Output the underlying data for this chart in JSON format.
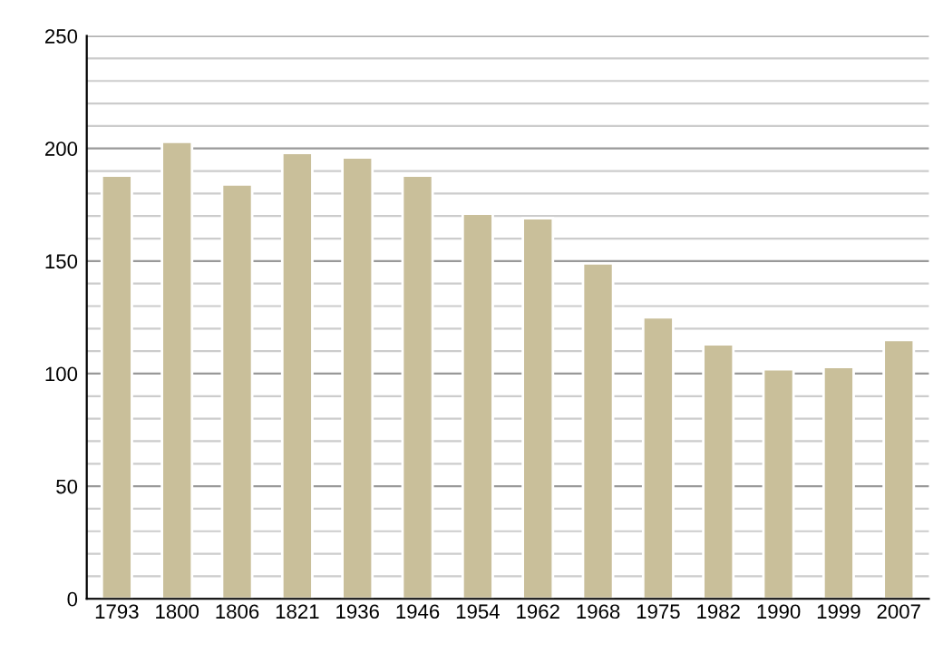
{
  "chart_data": {
    "type": "bar",
    "categories": [
      "1793",
      "1800",
      "1806",
      "1821",
      "1936",
      "1946",
      "1954",
      "1962",
      "1968",
      "1975",
      "1982",
      "1990",
      "1999",
      "2007"
    ],
    "values": [
      188,
      203,
      184,
      198,
      196,
      188,
      171,
      169,
      149,
      125,
      113,
      102,
      103,
      115
    ],
    "color": "#c9bf9a",
    "ylim": [
      0,
      250
    ],
    "yticks": [
      0,
      {
        "value": 10,
        "label": null
      },
      {
        "value": 20,
        "label": null
      },
      {
        "value": 30,
        "label": null
      },
      {
        "value": 40,
        "label": null
      },
      50,
      {
        "value": 60,
        "label": null
      },
      {
        "value": 70,
        "label": null
      },
      {
        "value": 80,
        "label": null
      },
      {
        "value": 90,
        "label": null
      },
      100,
      {
        "value": 110,
        "label": null
      },
      {
        "value": 120,
        "label": null
      },
      {
        "value": 130,
        "label": null
      },
      {
        "value": 140,
        "label": null
      },
      150,
      {
        "value": 160,
        "label": null
      },
      {
        "value": 170,
        "label": null
      },
      {
        "value": 180,
        "label": null
      },
      {
        "value": 190,
        "label": null
      },
      200,
      {
        "value": 210,
        "label": null
      },
      {
        "value": 220,
        "label": null
      },
      {
        "value": 230,
        "label": null
      },
      {
        "value": 240,
        "label": null
      },
      250
    ],
    "grid": "y"
  }
}
